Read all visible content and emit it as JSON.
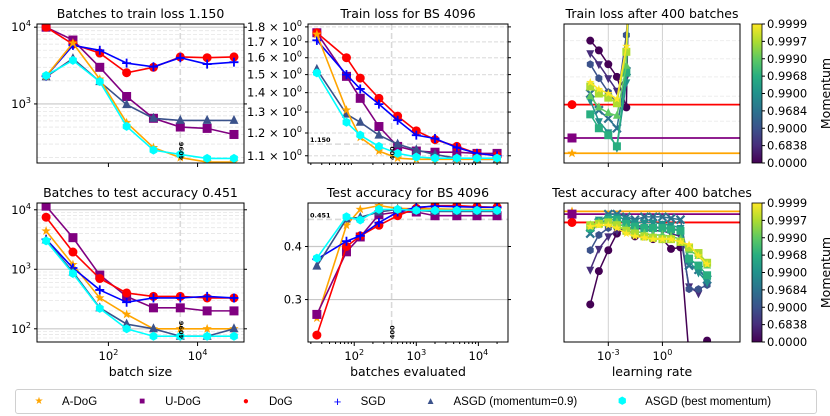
{
  "colors": {
    "A-DoG": "#ffa500",
    "U-DoG": "#800080",
    "DoG": "#ff0000",
    "SGD": "#0000ff",
    "ASGD (momentum=0.9)": "#3b528b",
    "ASGD (best momentum)": "#00ffff"
  },
  "legend": [
    {
      "label": "A-DoG",
      "marker": "star",
      "color": "#ffa500"
    },
    {
      "label": "U-DoG",
      "marker": "square",
      "color": "#800080"
    },
    {
      "label": "DoG",
      "marker": "circle",
      "color": "#ff0000"
    },
    {
      "label": "SGD",
      "marker": "plus",
      "color": "#0000ff"
    },
    {
      "label": "ASGD (momentum=0.9)",
      "marker": "triangle",
      "color": "#3b528b"
    },
    {
      "label": "ASGD (best momentum)",
      "marker": "hexagon",
      "color": "#00ffff"
    }
  ],
  "colorbar": {
    "label": "Momentum",
    "ticks": [
      "0.9999",
      "0.9997",
      "0.9990",
      "0.9968",
      "0.9900",
      "0.9684",
      "0.9000",
      "0.6838",
      "0.0000"
    ]
  },
  "chart_data": [
    {
      "id": "p1",
      "type": "line",
      "title": "Batches to train loss 1.150",
      "xlabel": "",
      "ylabel": "",
      "xscale": "log",
      "yscale": "log",
      "x": [
        4,
        16,
        64,
        256,
        1024,
        4096,
        16384,
        65536
      ],
      "xlim": [
        2.5,
        110000
      ],
      "ylim": [
        170,
        11000
      ],
      "ytick_labels": [
        "10^3",
        "10^4"
      ],
      "yticks": [
        1000,
        10000
      ],
      "xticks": [
        100,
        10000
      ],
      "vline": {
        "x": 4096,
        "label": "4096"
      },
      "series": [
        {
          "name": "U-DoG",
          "values": [
            10000,
            6800,
            3000,
            1250,
            650,
            500,
            480,
            400
          ]
        },
        {
          "name": "DoG",
          "values": [
            10000,
            6000,
            4600,
            2550,
            3000,
            4100,
            4000,
            4100
          ]
        },
        {
          "name": "SGD",
          "values": [
            2300,
            5800,
            5000,
            3400,
            3050,
            4000,
            3300,
            3500
          ]
        },
        {
          "name": "ASGD (momentum=0.9)",
          "values": [
            2250,
            3900,
            1950,
            980,
            650,
            610,
            610,
            610
          ]
        },
        {
          "name": "A-DoG",
          "values": [
            2300,
            6200,
            2100,
            570,
            270,
            200,
            175,
            175
          ]
        },
        {
          "name": "ASGD (best momentum)",
          "values": [
            2350,
            3700,
            1950,
            510,
            250,
            220,
            195,
            195
          ]
        }
      ]
    },
    {
      "id": "p2",
      "type": "line",
      "title": "Train loss for BS 4096",
      "xlabel": "",
      "ylabel": "",
      "xscale": "log",
      "yscale": "log",
      "x": [
        25,
        75,
        125,
        250,
        500,
        1000,
        2000,
        4500,
        9500,
        20000
      ],
      "xlim": [
        18,
        30000
      ],
      "ylim": [
        1.07,
        1.82
      ],
      "ytick_labels": [
        "1.1 × 10^0",
        "1.2 × 10^0",
        "1.3 × 10^0",
        "1.4 × 10^0",
        "1.5 × 10^0",
        "1.6 × 10^0",
        "1.7 × 10^0",
        "1.8 × 10^0"
      ],
      "yticks": [
        1.1,
        1.2,
        1.3,
        1.4,
        1.5,
        1.6,
        1.7,
        1.8
      ],
      "vline": {
        "x": 400,
        "label": "400"
      },
      "hline": {
        "y": 1.15,
        "label": "1.150"
      },
      "series": [
        {
          "name": "U-DoG",
          "values": [
            1.76,
            1.49,
            1.37,
            1.23,
            1.14,
            1.12,
            1.115,
            1.115,
            1.11,
            1.11
          ]
        },
        {
          "name": "DoG",
          "values": [
            1.76,
            1.6,
            1.48,
            1.37,
            1.28,
            1.21,
            1.17,
            1.14,
            1.11,
            1.1
          ]
        },
        {
          "name": "SGD",
          "values": [
            1.71,
            1.5,
            1.42,
            1.34,
            1.26,
            1.19,
            1.175,
            1.135,
            1.11,
            1.1
          ]
        },
        {
          "name": "ASGD (momentum=0.9)",
          "values": [
            1.53,
            1.29,
            1.25,
            1.19,
            1.15,
            1.125,
            1.105,
            1.09,
            1.085,
            1.085
          ]
        },
        {
          "name": "A-DoG",
          "values": [
            1.75,
            1.31,
            1.18,
            1.12,
            1.09,
            1.085,
            1.085,
            1.085,
            1.085,
            1.085
          ]
        },
        {
          "name": "ASGD (best momentum)",
          "values": [
            1.51,
            1.25,
            1.19,
            1.14,
            1.11,
            1.095,
            1.09,
            1.09,
            1.09,
            1.09
          ]
        }
      ]
    },
    {
      "id": "p3",
      "type": "line",
      "title": "Train loss after 400 batches",
      "xlabel": "",
      "ylabel": "",
      "xscale": "log",
      "xlim": [
        3.5e-06,
        20000
      ],
      "ylim": [
        0,
        1
      ],
      "xticks": [
        0.001,
        1
      ],
      "hlines": [
        {
          "name": "DoG",
          "value": 0.42
        },
        {
          "name": "U-DoG",
          "value": 0.18
        },
        {
          "name": "A-DoG",
          "value": 0.07
        }
      ],
      "note": "ASGD sweeps colored by momentum (viridis); y values relative (no tick labels)",
      "x": [
        0.0001,
        0.0003,
        0.001,
        0.003,
        0.01
      ],
      "series": [
        {
          "name": "momentum 0.0000",
          "values": [
            0.88,
            0.81,
            0.71,
            0.62,
            0.4
          ]
        },
        {
          "name": "momentum 0.6838",
          "values": [
            0.79,
            0.71,
            0.61,
            0.52,
            0.62
          ]
        },
        {
          "name": "momentum 0.9000",
          "values": [
            0.71,
            0.61,
            0.51,
            0.43,
            0.92
          ]
        },
        {
          "name": "momentum 0.9684",
          "values": [
            0.5,
            0.38,
            0.32,
            0.25,
            0.66
          ]
        },
        {
          "name": "momentum 0.9900",
          "values": [
            0.45,
            0.3,
            0.22,
            0.11,
            0.58
          ]
        },
        {
          "name": "momentum 0.9968",
          "values": [
            0.35,
            0.25,
            0.2,
            0.12,
            0.65
          ]
        },
        {
          "name": "momentum 0.9990",
          "values": [
            0.48,
            0.4,
            0.36,
            0.34,
            0.7
          ]
        },
        {
          "name": "momentum 0.9997",
          "values": [
            0.55,
            0.5,
            0.47,
            0.43,
            0.8
          ]
        },
        {
          "name": "momentum 0.9999",
          "values": [
            0.58,
            0.53,
            0.5,
            0.46,
            0.84
          ]
        }
      ]
    },
    {
      "id": "p4",
      "type": "line",
      "title": "Batches to test accuracy 0.451",
      "xlabel": "batch size",
      "ylabel": "",
      "xscale": "log",
      "yscale": "log",
      "x": [
        4,
        16,
        64,
        256,
        1024,
        4096,
        16384,
        65536
      ],
      "xlim": [
        2.5,
        110000
      ],
      "ylim": [
        60,
        13000
      ],
      "ytick_labels": [
        "10^2",
        "10^3",
        "10^4"
      ],
      "yticks": [
        100,
        1000,
        10000
      ],
      "xtick_labels": [
        "10^2",
        "10^4"
      ],
      "xticks": [
        100,
        10000
      ],
      "vline": {
        "x": 4096,
        "label": "4096"
      },
      "series": [
        {
          "name": "U-DoG",
          "values": [
            11500,
            3400,
            800,
            350,
            225,
            225,
            200,
            200
          ]
        },
        {
          "name": "DoG",
          "values": [
            7500,
            1950,
            700,
            400,
            350,
            350,
            330,
            330
          ]
        },
        {
          "name": "A-DoG",
          "values": [
            4400,
            1200,
            330,
            175,
            100,
            100,
            100,
            100
          ]
        },
        {
          "name": "SGD",
          "values": [
            3200,
            1050,
            450,
            280,
            330,
            330,
            350,
            330
          ]
        },
        {
          "name": "ASGD (momentum=0.9)",
          "values": [
            3100,
            900,
            225,
            120,
            100,
            75,
            75,
            100
          ]
        },
        {
          "name": "ASGD (best momentum)",
          "values": [
            3000,
            850,
            220,
            100,
            75,
            75,
            75,
            75
          ]
        }
      ]
    },
    {
      "id": "p5",
      "type": "line",
      "title": "Test accuracy for BS 4096",
      "xlabel": "batches evaluated",
      "ylabel": "",
      "xscale": "log",
      "x": [
        25,
        75,
        125,
        250,
        500,
        1000,
        2000,
        4500,
        9500,
        20000
      ],
      "xlim": [
        18,
        30000
      ],
      "ylim": [
        0.22,
        0.482
      ],
      "ytick_labels": [
        "0.3",
        "0.4"
      ],
      "yticks": [
        0.3,
        0.4
      ],
      "xtick_labels": [
        "10^2",
        "10^3",
        "10^4"
      ],
      "xticks": [
        100,
        1000,
        10000
      ],
      "vline": {
        "x": 400,
        "label": "400"
      },
      "hline": {
        "y": 0.451,
        "label": "0.451"
      },
      "series": [
        {
          "name": "A-DoG",
          "values": [
            0.265,
            0.44,
            0.47,
            0.477,
            0.472,
            0.471,
            0.471,
            0.47,
            0.47,
            0.47
          ]
        },
        {
          "name": "U-DoG",
          "values": [
            0.272,
            0.39,
            0.418,
            0.46,
            0.465,
            0.465,
            0.458,
            0.458,
            0.458,
            0.458
          ]
        },
        {
          "name": "DoG",
          "values": [
            0.233,
            0.4,
            0.42,
            0.44,
            0.458,
            0.472,
            0.477,
            0.477,
            0.475,
            0.474
          ]
        },
        {
          "name": "SGD",
          "values": [
            0.376,
            0.41,
            0.42,
            0.445,
            0.465,
            0.474,
            0.476,
            0.475,
            0.474,
            0.474
          ]
        },
        {
          "name": "ASGD (momentum=0.9)",
          "values": [
            0.363,
            0.452,
            0.455,
            0.465,
            0.47,
            0.468,
            0.466,
            0.466,
            0.466,
            0.466
          ]
        },
        {
          "name": "ASGD (best momentum)",
          "values": [
            0.378,
            0.456,
            0.45,
            0.47,
            0.47,
            0.468,
            0.468,
            0.468,
            0.468,
            0.468
          ]
        }
      ]
    },
    {
      "id": "p6",
      "type": "line",
      "title": "Test accuracy after 400 batches",
      "xlabel": "learning rate",
      "ylabel": "",
      "xscale": "log",
      "xlim": [
        3.5e-06,
        20000
      ],
      "ylim": [
        0,
        1
      ],
      "xtick_labels": [
        "10^-3",
        "10^0"
      ],
      "xticks": [
        0.001,
        1
      ],
      "hlines": [
        {
          "name": "A-DoG",
          "value": 0.94
        },
        {
          "name": "U-DoG",
          "value": 0.92
        },
        {
          "name": "DoG",
          "value": 0.86
        }
      ],
      "note": "ASGD sweeps colored by momentum (viridis); y values relative (no tick labels)",
      "x": [
        0.0001,
        0.0003,
        0.001,
        0.003,
        0.01,
        0.03,
        0.1,
        0.3,
        1,
        3,
        10,
        30,
        100,
        300
      ],
      "series": [
        {
          "name": "momentum 0.0000",
          "values": [
            0.27,
            0.51,
            0.66,
            0.78,
            0.82,
            0.76,
            0.76,
            0.74,
            0.74,
            0.67,
            0.68,
            -0.1,
            null,
            0.01
          ]
        },
        {
          "name": "momentum 0.6838",
          "values": [
            0.52,
            0.67,
            0.76,
            0.8,
            0.82,
            0.82,
            0.81,
            0.8,
            0.8,
            0.78,
            0.76,
            0.4,
            0.35,
            null
          ]
        },
        {
          "name": "momentum 0.9000",
          "values": [
            0.66,
            0.77,
            0.82,
            0.84,
            0.84,
            0.84,
            0.83,
            0.83,
            0.82,
            0.82,
            0.8,
            0.38,
            0.38,
            0.41
          ]
        },
        {
          "name": "momentum 0.9684",
          "values": [
            0.78,
            0.86,
            0.92,
            0.92,
            0.9,
            0.88,
            0.9,
            0.9,
            0.9,
            0.89,
            0.88,
            0.55,
            0.52,
            0.45
          ]
        },
        {
          "name": "momentum 0.9900",
          "values": [
            0.8,
            0.88,
            0.9,
            0.9,
            0.88,
            0.86,
            0.86,
            0.86,
            0.85,
            0.84,
            0.82,
            0.58,
            0.5,
            0.43
          ]
        },
        {
          "name": "momentum 0.9968",
          "values": [
            0.82,
            0.86,
            0.88,
            0.88,
            0.85,
            0.83,
            0.82,
            0.82,
            0.82,
            0.81,
            0.8,
            0.6,
            0.55,
            0.48
          ]
        },
        {
          "name": "momentum 0.9990",
          "values": [
            0.84,
            0.86,
            0.86,
            0.86,
            0.82,
            0.8,
            0.78,
            0.77,
            0.77,
            0.76,
            0.74,
            0.66,
            0.62,
            0.55
          ]
        },
        {
          "name": "momentum 0.9997",
          "values": [
            0.84,
            0.85,
            0.86,
            0.84,
            0.8,
            0.78,
            0.76,
            0.75,
            0.74,
            0.74,
            0.72,
            0.68,
            0.64,
            0.57
          ]
        },
        {
          "name": "momentum 0.9999",
          "values": [
            0.83,
            0.84,
            0.84,
            0.82,
            0.78,
            0.76,
            0.75,
            0.74,
            0.74,
            0.74,
            0.72,
            0.7,
            0.62,
            0.56
          ]
        }
      ]
    }
  ]
}
